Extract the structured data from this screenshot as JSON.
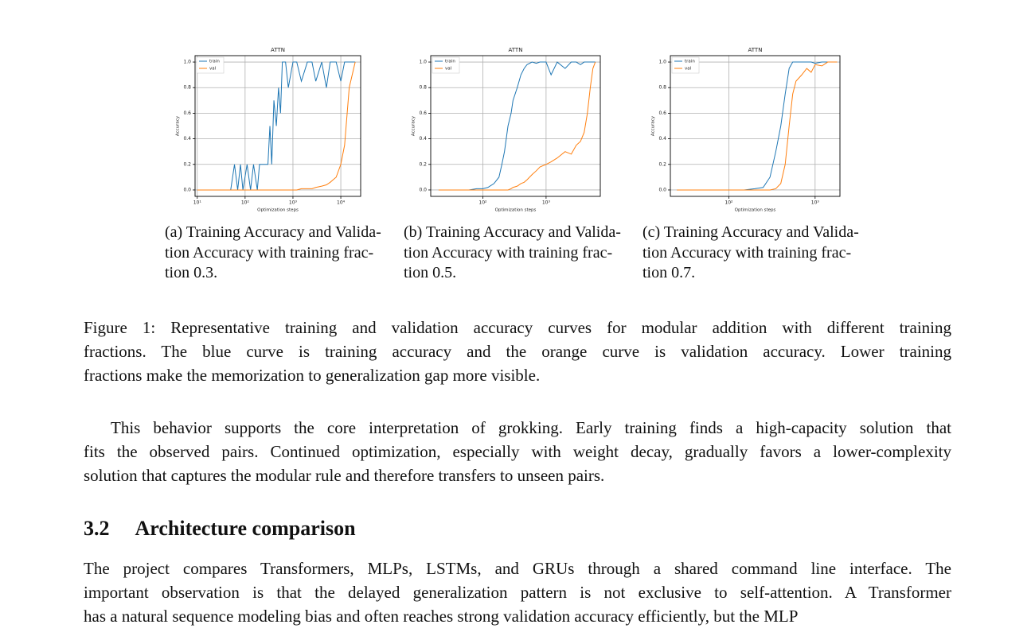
{
  "chart_data": [
    {
      "type": "line",
      "title": "ATTN",
      "xlabel": "Optimization steps",
      "ylabel": "Accuracy",
      "xscale": "log",
      "grid": true,
      "legend": "upper left",
      "xlim": [
        9,
        26000
      ],
      "ylim": [
        -0.05,
        1.05
      ],
      "xticks": [
        {
          "value": 10,
          "label": "10¹"
        },
        {
          "value": 100,
          "label": "10²"
        },
        {
          "value": 1000,
          "label": "10³"
        },
        {
          "value": 10000,
          "label": "10⁴"
        }
      ],
      "yticks": [
        {
          "value": 0,
          "label": "0.0"
        },
        0.2,
        0.4,
        0.6,
        0.8,
        {
          "value": 1,
          "label": "1.0"
        }
      ],
      "x": [
        10,
        30,
        50,
        60,
        70,
        80,
        90,
        110,
        130,
        150,
        180,
        200,
        250,
        300,
        330,
        360,
        400,
        450,
        500,
        550,
        600,
        650,
        700,
        800,
        1000,
        1200,
        1500,
        2000,
        2500,
        3000,
        4000,
        5000,
        6000,
        8000,
        10000,
        12000,
        15000,
        20000
      ],
      "series": [
        {
          "name": "train",
          "color": "#1f77b4",
          "values": [
            0,
            0,
            0,
            0.2,
            0,
            0.2,
            0,
            0.2,
            0,
            0.2,
            0,
            0.2,
            0.2,
            0.2,
            0.5,
            0.2,
            0.7,
            0.5,
            0.8,
            0.6,
            1.0,
            1.0,
            1.0,
            0.8,
            1.0,
            1.0,
            0.85,
            1.0,
            1.0,
            0.85,
            1.0,
            0.8,
            1.0,
            1.0,
            0.85,
            1.0,
            1.0,
            1.0
          ]
        },
        {
          "name": "val",
          "color": "#ff7f0e",
          "values": [
            0,
            0,
            0,
            0,
            0,
            0,
            0,
            0,
            0,
            0,
            0,
            0,
            0,
            0,
            0,
            0,
            0,
            0,
            0,
            0,
            0,
            0,
            0,
            0,
            0,
            0,
            0.01,
            0.01,
            0.01,
            0.02,
            0.03,
            0.04,
            0.06,
            0.1,
            0.2,
            0.35,
            0.8,
            1.0
          ]
        }
      ]
    },
    {
      "type": "line",
      "title": "ATTN",
      "xlabel": "Optimization steps",
      "ylabel": "Accuracy",
      "xscale": "log",
      "grid": true,
      "legend": "upper left",
      "xlim": [
        15,
        7200
      ],
      "ylim": [
        -0.05,
        1.05
      ],
      "xticks": [
        {
          "value": 100,
          "label": "10²"
        },
        {
          "value": 1000,
          "label": "10³"
        }
      ],
      "yticks": [
        {
          "value": 0,
          "label": "0.0"
        },
        0.2,
        0.4,
        0.6,
        0.8,
        {
          "value": 1,
          "label": "1.0"
        }
      ],
      "x": [
        20,
        40,
        60,
        80,
        100,
        120,
        150,
        180,
        200,
        220,
        250,
        280,
        300,
        350,
        400,
        450,
        500,
        600,
        700,
        800,
        1000,
        1200,
        1500,
        2000,
        2500,
        3000,
        3500,
        4000,
        4500,
        5000,
        5500,
        6000
      ],
      "series": [
        {
          "name": "train",
          "color": "#1f77b4",
          "values": [
            0,
            0,
            0,
            0.01,
            0.01,
            0.02,
            0.05,
            0.1,
            0.2,
            0.3,
            0.5,
            0.6,
            0.7,
            0.8,
            0.9,
            0.95,
            0.98,
            1.0,
            0.99,
            1.0,
            1.0,
            0.9,
            1.0,
            0.95,
            1.0,
            1.0,
            0.98,
            1.0,
            1.0,
            1.0,
            1.0,
            1.0
          ]
        },
        {
          "name": "val",
          "color": "#ff7f0e",
          "values": [
            0,
            0,
            0,
            0,
            0,
            0,
            0,
            0,
            0,
            0,
            0,
            0.01,
            0.02,
            0.03,
            0.05,
            0.06,
            0.08,
            0.12,
            0.15,
            0.18,
            0.2,
            0.22,
            0.25,
            0.3,
            0.28,
            0.35,
            0.38,
            0.45,
            0.6,
            0.8,
            0.95,
            1.0
          ]
        }
      ]
    },
    {
      "type": "line",
      "title": "ATTN",
      "xlabel": "Optimization steps",
      "ylabel": "Accuracy",
      "xscale": "log",
      "grid": true,
      "legend": "upper left",
      "xlim": [
        21,
        1940
      ],
      "ylim": [
        -0.05,
        1.05
      ],
      "xticks": [
        {
          "value": 100,
          "label": "10²"
        },
        {
          "value": 1000,
          "label": "10³"
        }
      ],
      "yticks": [
        {
          "value": 0,
          "label": "0.0"
        },
        0.2,
        0.4,
        0.6,
        0.8,
        {
          "value": 1,
          "label": "1.0"
        }
      ],
      "x": [
        25,
        50,
        75,
        100,
        150,
        200,
        250,
        300,
        350,
        400,
        450,
        500,
        550,
        600,
        700,
        800,
        900,
        1000,
        1200,
        1400,
        1600,
        1800
      ],
      "series": [
        {
          "name": "train",
          "color": "#1f77b4",
          "values": [
            0,
            0,
            0,
            0,
            0,
            0.01,
            0.02,
            0.1,
            0.3,
            0.5,
            0.75,
            0.95,
            1.0,
            1.0,
            1.0,
            1.0,
            1.0,
            0.99,
            1.0,
            1.0,
            1.0,
            1.0
          ]
        },
        {
          "name": "val",
          "color": "#ff7f0e",
          "values": [
            0,
            0,
            0,
            0,
            0,
            0,
            0,
            0,
            0.01,
            0.05,
            0.2,
            0.5,
            0.75,
            0.85,
            0.9,
            0.95,
            0.92,
            0.98,
            0.97,
            1.0,
            1.0,
            1.0
          ]
        }
      ]
    }
  ],
  "subfigure_captions": [
    [
      "(a) Training Accuracy and Valida-",
      "tion Accuracy with training frac-",
      "tion 0.3."
    ],
    [
      "(b) Training Accuracy and Valida-",
      "tion Accuracy with training frac-",
      "tion 0.5."
    ],
    [
      "(c) Training Accuracy and Valida-",
      "tion Accuracy with training frac-",
      "tion 0.7."
    ]
  ],
  "figure_caption": [
    "Figure 1: Representative training and validation accuracy curves for modular addition with different training",
    "fractions. The blue curve is training accuracy and the orange curve is validation accuracy. Lower training",
    "fractions make the memorization to generalization gap more visible."
  ],
  "paragraph_1": [
    "This behavior supports the core interpretation of grokking. Early training finds a high-capacity solution that",
    "fits the observed pairs. Continued optimization, especially with weight decay, gradually favors a lower-complexity",
    "solution that captures the modular rule and therefore transfers to unseen pairs."
  ],
  "section": {
    "number": "3.2",
    "title": "Architecture comparison"
  },
  "paragraph_2": [
    "The project compares Transformers, MLPs, LSTMs, and GRUs through a shared command line interface. The",
    "important observation is that the delayed generalization pattern is not exclusive to self-attention. A Transformer",
    "has a natural sequence modeling bias and often reaches strong validation accuracy efficiently, but the MLP"
  ]
}
